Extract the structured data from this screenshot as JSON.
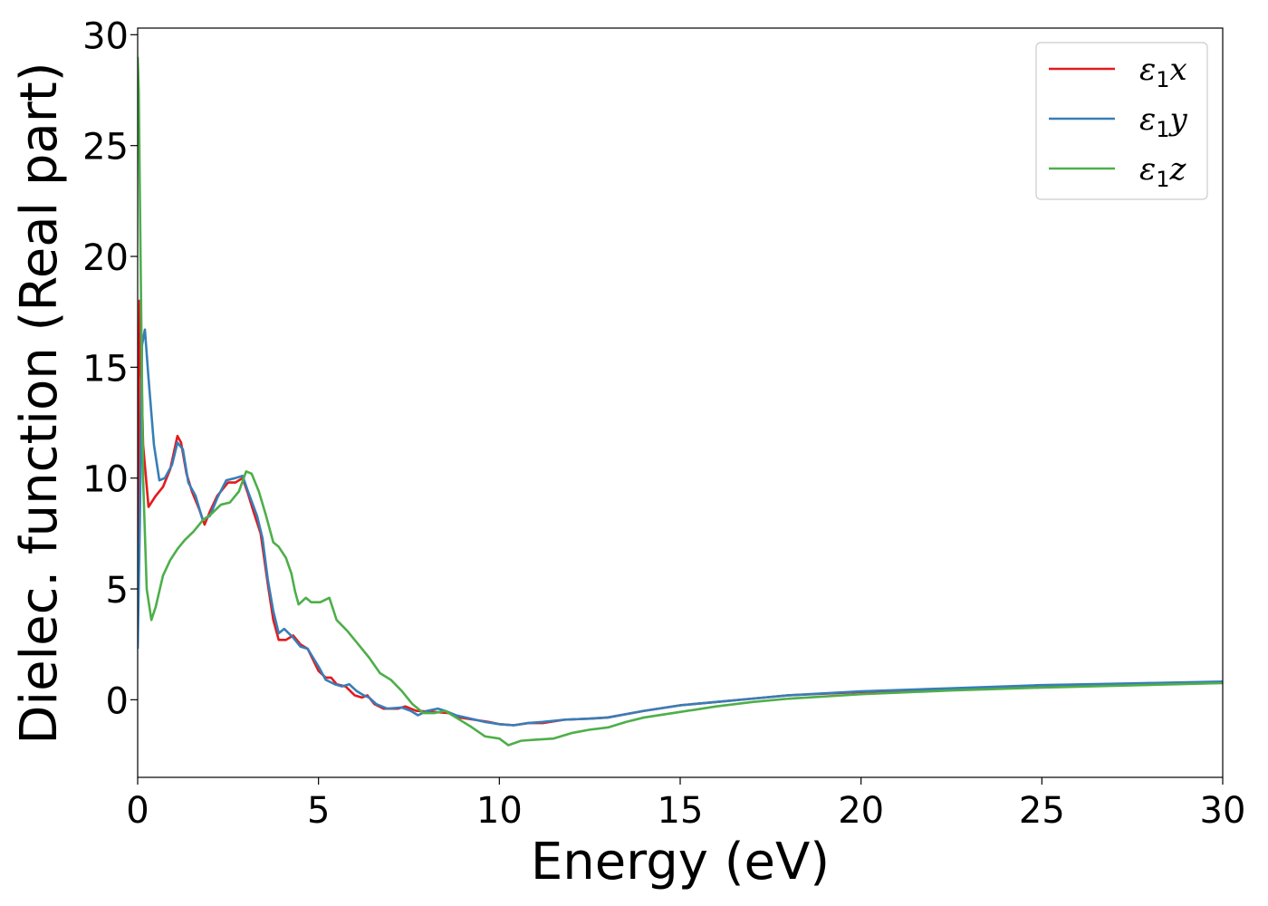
{
  "chart_data": {
    "type": "line",
    "title": "",
    "xlabel": "Energy (eV)",
    "ylabel": "Dielec. function (Real part)",
    "xlim": [
      0,
      30
    ],
    "ylim": [
      -3.5,
      30.3
    ],
    "x_ticks": [
      0,
      5,
      10,
      15,
      20,
      25,
      30
    ],
    "y_ticks": [
      0,
      5,
      10,
      15,
      20,
      25,
      30
    ],
    "grid": false,
    "legend_position": "top-right",
    "series": [
      {
        "name": "ε1x",
        "legend": {
          "base": "ε",
          "sub": "1",
          "axis": "x"
        },
        "color": "#e41a1c",
        "points": [
          [
            0.0,
            2.5
          ],
          [
            0.05,
            18.0
          ],
          [
            0.1,
            15.0
          ],
          [
            0.15,
            11.5
          ],
          [
            0.3,
            8.7
          ],
          [
            0.5,
            9.2
          ],
          [
            0.7,
            9.6
          ],
          [
            0.9,
            10.4
          ],
          [
            1.1,
            11.9
          ],
          [
            1.2,
            11.6
          ],
          [
            1.35,
            10.2
          ],
          [
            1.5,
            9.4
          ],
          [
            1.7,
            8.6
          ],
          [
            1.85,
            7.9
          ],
          [
            2.0,
            8.5
          ],
          [
            2.2,
            9.2
          ],
          [
            2.5,
            9.8
          ],
          [
            2.7,
            9.8
          ],
          [
            2.9,
            10.0
          ],
          [
            3.05,
            9.3
          ],
          [
            3.2,
            8.5
          ],
          [
            3.4,
            7.5
          ],
          [
            3.6,
            5.2
          ],
          [
            3.75,
            3.6
          ],
          [
            3.9,
            2.7
          ],
          [
            4.1,
            2.7
          ],
          [
            4.3,
            2.9
          ],
          [
            4.5,
            2.5
          ],
          [
            4.7,
            2.3
          ],
          [
            4.85,
            1.8
          ],
          [
            5.0,
            1.3
          ],
          [
            5.2,
            1.0
          ],
          [
            5.35,
            1.0
          ],
          [
            5.5,
            0.7
          ],
          [
            5.75,
            0.6
          ],
          [
            6.0,
            0.2
          ],
          [
            6.2,
            0.1
          ],
          [
            6.35,
            0.2
          ],
          [
            6.55,
            -0.2
          ],
          [
            6.8,
            -0.4
          ],
          [
            7.2,
            -0.4
          ],
          [
            7.4,
            -0.3
          ],
          [
            7.7,
            -0.5
          ],
          [
            8.2,
            -0.55
          ],
          [
            8.6,
            -0.6
          ],
          [
            8.9,
            -0.8
          ],
          [
            9.3,
            -0.9
          ],
          [
            9.7,
            -1.0
          ],
          [
            10.0,
            -1.1
          ],
          [
            10.4,
            -1.15
          ],
          [
            10.8,
            -1.05
          ],
          [
            11.2,
            -1.05
          ],
          [
            11.8,
            -0.9
          ],
          [
            12.5,
            -0.85
          ],
          [
            13.0,
            -0.8
          ],
          [
            14.0,
            -0.5
          ],
          [
            15.0,
            -0.25
          ],
          [
            16.0,
            -0.1
          ],
          [
            17.0,
            0.05
          ],
          [
            18.0,
            0.2
          ],
          [
            20.0,
            0.35
          ],
          [
            22.5,
            0.5
          ],
          [
            25.0,
            0.65
          ],
          [
            27.5,
            0.72
          ],
          [
            30.0,
            0.8
          ]
        ]
      },
      {
        "name": "ε1y",
        "legend": {
          "base": "ε",
          "sub": "1",
          "axis": "y"
        },
        "color": "#377eb8",
        "points": [
          [
            0.0,
            2.3
          ],
          [
            0.06,
            8.0
          ],
          [
            0.12,
            16.0
          ],
          [
            0.2,
            16.7
          ],
          [
            0.3,
            14.5
          ],
          [
            0.45,
            11.5
          ],
          [
            0.6,
            9.9
          ],
          [
            0.75,
            10.0
          ],
          [
            0.95,
            10.6
          ],
          [
            1.1,
            11.6
          ],
          [
            1.25,
            11.3
          ],
          [
            1.4,
            9.8
          ],
          [
            1.6,
            9.2
          ],
          [
            1.8,
            8.1
          ],
          [
            2.0,
            8.3
          ],
          [
            2.2,
            9.1
          ],
          [
            2.45,
            9.9
          ],
          [
            2.7,
            10.0
          ],
          [
            2.9,
            10.1
          ],
          [
            3.05,
            9.4
          ],
          [
            3.3,
            8.3
          ],
          [
            3.45,
            7.3
          ],
          [
            3.6,
            5.4
          ],
          [
            3.75,
            4.0
          ],
          [
            3.9,
            3.0
          ],
          [
            4.05,
            3.2
          ],
          [
            4.3,
            2.8
          ],
          [
            4.5,
            2.4
          ],
          [
            4.7,
            2.3
          ],
          [
            4.85,
            1.9
          ],
          [
            5.0,
            1.5
          ],
          [
            5.2,
            0.9
          ],
          [
            5.45,
            0.7
          ],
          [
            5.65,
            0.6
          ],
          [
            5.85,
            0.7
          ],
          [
            6.05,
            0.4
          ],
          [
            6.25,
            0.2
          ],
          [
            6.4,
            0.1
          ],
          [
            6.6,
            -0.2
          ],
          [
            6.9,
            -0.4
          ],
          [
            7.3,
            -0.35
          ],
          [
            7.55,
            -0.5
          ],
          [
            7.75,
            -0.7
          ],
          [
            8.0,
            -0.5
          ],
          [
            8.3,
            -0.4
          ],
          [
            8.5,
            -0.5
          ],
          [
            8.8,
            -0.7
          ],
          [
            9.2,
            -0.85
          ],
          [
            9.6,
            -1.0
          ],
          [
            10.0,
            -1.1
          ],
          [
            10.4,
            -1.15
          ],
          [
            10.8,
            -1.05
          ],
          [
            11.2,
            -1.0
          ],
          [
            11.8,
            -0.9
          ],
          [
            12.5,
            -0.85
          ],
          [
            13.0,
            -0.8
          ],
          [
            14.0,
            -0.5
          ],
          [
            15.0,
            -0.25
          ],
          [
            16.0,
            -0.1
          ],
          [
            17.0,
            0.05
          ],
          [
            18.0,
            0.2
          ],
          [
            20.0,
            0.38
          ],
          [
            22.5,
            0.52
          ],
          [
            25.0,
            0.66
          ],
          [
            27.5,
            0.74
          ],
          [
            30.0,
            0.82
          ]
        ]
      },
      {
        "name": "ε1z",
        "legend": {
          "base": "ε",
          "sub": "1",
          "axis": "z"
        },
        "color": "#4daf4a",
        "points": [
          [
            0.0,
            29.0
          ],
          [
            0.03,
            27.5
          ],
          [
            0.08,
            20.0
          ],
          [
            0.15,
            10.0
          ],
          [
            0.25,
            5.0
          ],
          [
            0.38,
            3.6
          ],
          [
            0.5,
            4.2
          ],
          [
            0.7,
            5.6
          ],
          [
            0.9,
            6.3
          ],
          [
            1.1,
            6.8
          ],
          [
            1.3,
            7.2
          ],
          [
            1.55,
            7.6
          ],
          [
            1.8,
            8.1
          ],
          [
            2.05,
            8.4
          ],
          [
            2.3,
            8.8
          ],
          [
            2.55,
            8.9
          ],
          [
            2.8,
            9.4
          ],
          [
            3.0,
            10.3
          ],
          [
            3.15,
            10.2
          ],
          [
            3.35,
            9.4
          ],
          [
            3.55,
            8.3
          ],
          [
            3.75,
            7.1
          ],
          [
            3.9,
            6.9
          ],
          [
            4.1,
            6.4
          ],
          [
            4.25,
            5.7
          ],
          [
            4.35,
            4.9
          ],
          [
            4.45,
            4.3
          ],
          [
            4.65,
            4.6
          ],
          [
            4.8,
            4.4
          ],
          [
            5.05,
            4.4
          ],
          [
            5.3,
            4.6
          ],
          [
            5.5,
            3.6
          ],
          [
            5.8,
            3.1
          ],
          [
            6.1,
            2.5
          ],
          [
            6.4,
            1.9
          ],
          [
            6.7,
            1.2
          ],
          [
            7.0,
            0.9
          ],
          [
            7.3,
            0.4
          ],
          [
            7.6,
            -0.2
          ],
          [
            7.9,
            -0.6
          ],
          [
            8.2,
            -0.6
          ],
          [
            8.5,
            -0.5
          ],
          [
            8.8,
            -0.8
          ],
          [
            9.2,
            -1.2
          ],
          [
            9.6,
            -1.65
          ],
          [
            10.0,
            -1.75
          ],
          [
            10.25,
            -2.05
          ],
          [
            10.6,
            -1.85
          ],
          [
            11.0,
            -1.8
          ],
          [
            11.5,
            -1.75
          ],
          [
            12.0,
            -1.5
          ],
          [
            12.5,
            -1.35
          ],
          [
            13.0,
            -1.25
          ],
          [
            13.5,
            -1.0
          ],
          [
            14.0,
            -0.8
          ],
          [
            15.0,
            -0.55
          ],
          [
            16.0,
            -0.3
          ],
          [
            17.0,
            -0.1
          ],
          [
            18.0,
            0.05
          ],
          [
            20.0,
            0.25
          ],
          [
            22.5,
            0.42
          ],
          [
            25.0,
            0.55
          ],
          [
            27.5,
            0.65
          ],
          [
            30.0,
            0.75
          ]
        ]
      }
    ]
  }
}
